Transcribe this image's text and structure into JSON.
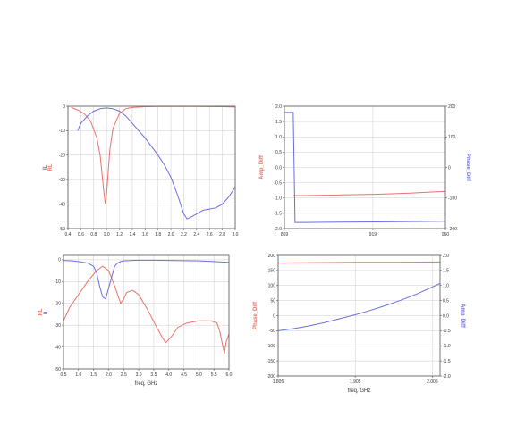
{
  "colors": {
    "red": "#e8736b",
    "blue": "#6a6ee0",
    "grid": "#cccccc",
    "frame": "#555555"
  },
  "chart_data": [
    {
      "type": "line",
      "xlim": [
        0.4,
        3.0
      ],
      "ylim": [
        -50,
        0
      ],
      "x_ticks": [
        "0.4",
        "0.6",
        "0.8",
        "1.0",
        "1.2",
        "1.4",
        "1.6",
        "1.8",
        "2.0",
        "2.2",
        "2.4",
        "2.6",
        "2.8",
        "3.0"
      ],
      "y_ticks": [
        "0",
        "-10",
        "-20",
        "-30",
        "-40",
        "-50"
      ],
      "xlabel": "",
      "ylabel_lines": [
        {
          "text": "IL",
          "color": "#6a6ee0"
        },
        {
          "text": "RL",
          "color": "#e8736b"
        }
      ],
      "grid": true,
      "series": [
        {
          "color": "#e8736b",
          "x": [
            0.45,
            0.55,
            0.65,
            0.75,
            0.85,
            0.9,
            0.95,
            0.98,
            1.0,
            1.05,
            1.1,
            1.2,
            1.3,
            1.4,
            1.6,
            1.8,
            2.0,
            2.4,
            2.8,
            3.0
          ],
          "y": [
            -0.5,
            -1.5,
            -3,
            -6,
            -13,
            -20,
            -33,
            -40,
            -36,
            -18,
            -9,
            -3,
            -1,
            -0.5,
            -0.2,
            -0.1,
            -0.1,
            -0.1,
            -0.2,
            -0.3
          ]
        },
        {
          "color": "#6a6ee0",
          "x": [
            0.55,
            0.6,
            0.7,
            0.8,
            0.9,
            1.0,
            1.1,
            1.2,
            1.3,
            1.4,
            1.6,
            1.8,
            1.9,
            2.0,
            2.1,
            2.2,
            2.25,
            2.3,
            2.4,
            2.5,
            2.6,
            2.7,
            2.8,
            2.9,
            3.0
          ],
          "y": [
            -10,
            -7,
            -4,
            -2,
            -1,
            -0.7,
            -1,
            -2,
            -4,
            -7,
            -13,
            -20,
            -24,
            -29,
            -36,
            -44,
            -46,
            -45.5,
            -44,
            -42.5,
            -42,
            -41.5,
            -40,
            -37,
            -33
          ]
        }
      ]
    },
    {
      "type": "line",
      "xlim": [
        869,
        960
      ],
      "ylim": [
        -2.0,
        2.0
      ],
      "y2lim": [
        -200,
        200
      ],
      "x_ticks": [
        "869",
        "919",
        "960"
      ],
      "x_tick_values": [
        869,
        919,
        960
      ],
      "y_ticks": [
        "2.0",
        "1.5",
        "1.0",
        "0.5",
        "0.0",
        "-0.5",
        "-1.0",
        "-1.5",
        "-2.0"
      ],
      "y2_ticks": [
        "200",
        "100",
        "0",
        "-100",
        "-200"
      ],
      "xlabel": "",
      "ylabel": "Amp_Diff",
      "y2label": "Phase_Diff",
      "grid": true,
      "series": [
        {
          "color": "#e8736b",
          "axis": "left",
          "x": [
            874,
            880,
            900,
            920,
            940,
            960
          ],
          "y": [
            -0.92,
            -0.92,
            -0.9,
            -0.88,
            -0.84,
            -0.78
          ]
        },
        {
          "color": "#6a6ee0",
          "axis": "right",
          "x": [
            869,
            874,
            874,
            875,
            880,
            900,
            920,
            940,
            960
          ],
          "y": [
            180,
            180,
            170,
            -180,
            -180,
            -179,
            -178,
            -177,
            -176
          ]
        }
      ]
    },
    {
      "type": "line",
      "xlim": [
        0.5,
        6.0
      ],
      "ylim": [
        -50,
        2
      ],
      "x_ticks": [
        "0.5",
        "1.0",
        "1.5",
        "2.0",
        "2.5",
        "3.0",
        "3.5",
        "4.0",
        "4.5",
        "5.0",
        "5.5",
        "6.0"
      ],
      "y_ticks": [
        "0",
        "-10",
        "-20",
        "-30",
        "-40",
        "-50"
      ],
      "xlabel": "freq, GHz",
      "ylabel_lines": [
        {
          "text": "RL",
          "color": "#e8736b"
        },
        {
          "text": "IL",
          "color": "#6a6ee0"
        }
      ],
      "grid": true,
      "series": [
        {
          "color": "#e8736b",
          "x": [
            0.5,
            0.7,
            1.0,
            1.3,
            1.6,
            1.8,
            2.0,
            2.2,
            2.4,
            2.5,
            2.6,
            2.8,
            3.0,
            3.3,
            3.6,
            3.8,
            3.9,
            4.1,
            4.3,
            4.6,
            5.0,
            5.4,
            5.6,
            5.7,
            5.8,
            5.85,
            5.9,
            6.0
          ],
          "y": [
            -28,
            -22,
            -16,
            -10,
            -5,
            -3,
            -5,
            -12,
            -20,
            -18,
            -15,
            -14,
            -16,
            -23,
            -31,
            -36,
            -38,
            -35,
            -31,
            -29,
            -28,
            -28,
            -29,
            -33,
            -40,
            -43,
            -38,
            -34
          ]
        },
        {
          "color": "#6a6ee0",
          "x": [
            0.5,
            0.8,
            1.0,
            1.3,
            1.5,
            1.6,
            1.7,
            1.8,
            1.9,
            2.0,
            2.1,
            2.2,
            2.3,
            2.4,
            2.5,
            2.8,
            3.0,
            3.5,
            4.0,
            4.5,
            5.0,
            5.5,
            6.0
          ],
          "y": [
            -0.3,
            -0.5,
            -0.8,
            -1.5,
            -3,
            -6,
            -12,
            -17,
            -18,
            -13,
            -8,
            -3,
            -1.5,
            -0.8,
            -0.5,
            -0.3,
            -0.2,
            -0.2,
            -0.3,
            -0.4,
            -0.5,
            -0.8,
            -1.2
          ]
        }
      ]
    },
    {
      "type": "line",
      "xlim": [
        1.805,
        2.015
      ],
      "ylim": [
        -200,
        200
      ],
      "y2lim": [
        -2.0,
        2.0
      ],
      "x_ticks": [
        "1.805",
        "1.905",
        "2.005"
      ],
      "x_tick_values": [
        1.805,
        1.905,
        2.005
      ],
      "y_ticks": [
        "200",
        "150",
        "100",
        "50",
        "0",
        "-50",
        "-100",
        "-150",
        "-200"
      ],
      "y2_ticks": [
        "2.0",
        "1.5",
        "1.0",
        "0.5",
        "0.0",
        "-0.5",
        "-1.0",
        "-1.5",
        "-2.0"
      ],
      "xlabel": "freq, GHz",
      "ylabel": "Phase_Diff",
      "y2label": "Amp_Diff",
      "grid": true,
      "series": [
        {
          "color": "#e8736b",
          "axis": "left",
          "x": [
            1.805,
            1.855,
            1.905,
            1.955,
            2.015
          ],
          "y": [
            175,
            176,
            177,
            177,
            178
          ]
        },
        {
          "color": "#6a6ee0",
          "axis": "right",
          "x": [
            1.805,
            1.825,
            1.845,
            1.865,
            1.885,
            1.905,
            1.925,
            1.945,
            1.965,
            1.985,
            2.005,
            2.015
          ],
          "y": [
            -0.5,
            -0.43,
            -0.34,
            -0.23,
            -0.1,
            0.03,
            0.18,
            0.34,
            0.52,
            0.72,
            0.95,
            1.07
          ]
        }
      ]
    }
  ]
}
